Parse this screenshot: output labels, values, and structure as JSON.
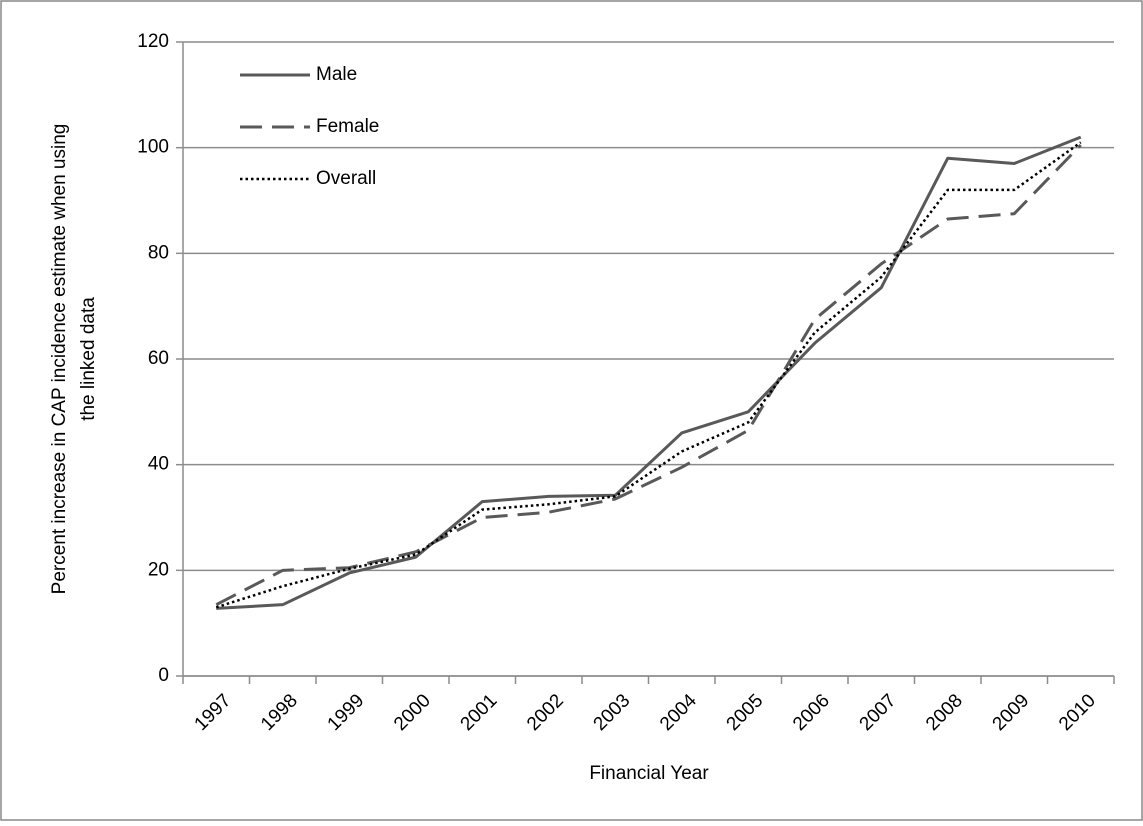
{
  "chart_data": {
    "type": "line",
    "xlabel": "Financial Year",
    "ylabel": [
      "Percent increase in CAP incidence estimate when using",
      "the linked data"
    ],
    "categories": [
      "1997",
      "1998",
      "1999",
      "2000",
      "2001",
      "2002",
      "2003",
      "2004",
      "2005",
      "2006",
      "2007",
      "2008",
      "2009",
      "2010"
    ],
    "series": [
      {
        "name": "Male",
        "color": "#595959",
        "dash": "solid",
        "values": [
          12.8,
          13.5,
          19.5,
          22.5,
          33,
          34,
          34.2,
          46,
          50,
          63,
          73.5,
          98,
          97,
          102
        ]
      },
      {
        "name": "Female",
        "color": "#595959",
        "dash": "dashed",
        "values": [
          13.5,
          20,
          20.5,
          23.5,
          30,
          31,
          33.5,
          39.5,
          46.5,
          67.5,
          78,
          86.5,
          87.5,
          100.5
        ]
      },
      {
        "name": "Overall",
        "color": "#000000",
        "dash": "dotted",
        "values": [
          13,
          17,
          20.3,
          23,
          31.5,
          32.5,
          34,
          42.5,
          48,
          65,
          75.5,
          92,
          92,
          101
        ]
      }
    ],
    "ylim": [
      0,
      120
    ],
    "yticks": [
      0,
      20,
      40,
      60,
      80,
      100,
      120
    ],
    "grid": true,
    "legend": "top-left"
  }
}
